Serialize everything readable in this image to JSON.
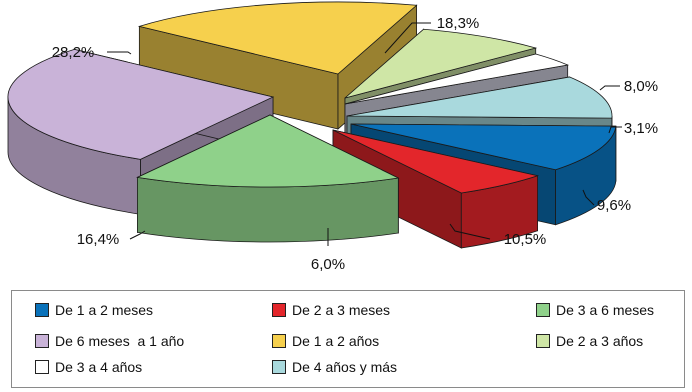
{
  "chart_data": {
    "type": "pie",
    "title": "",
    "slices": [
      {
        "label": "De 1 a 2 meses",
        "value": 10.5,
        "value_label": "10,5%",
        "color": "#0A72BA"
      },
      {
        "label": "De 2 a 3 meses",
        "value": 6.0,
        "value_label": "6,0%",
        "color": "#E3262B"
      },
      {
        "label": "De 3 a 6 meses",
        "value": 16.4,
        "value_label": "16,4%",
        "color": "#8FD18A"
      },
      {
        "label": "De 6 meses  a 1 año",
        "value": 28.2,
        "value_label": "28,2%",
        "color": "#C9B3D8"
      },
      {
        "label": "De 1 a 2 años",
        "value": 18.3,
        "value_label": "18,3%",
        "color": "#F6D04D"
      },
      {
        "label": "De 2 a 3 años",
        "value": 8.0,
        "value_label": "8,0%",
        "color": "#CFE6A6"
      },
      {
        "label": "De 3 a 4 años",
        "value": 3.1,
        "value_label": "3,1%",
        "color": "#FFFFFF"
      },
      {
        "label": "De 4 años y más",
        "value": 9.6,
        "value_label": "9,6%",
        "color": "#A9D9DD"
      }
    ],
    "exploded": true,
    "three_d": true,
    "legend_position": "bottom"
  }
}
